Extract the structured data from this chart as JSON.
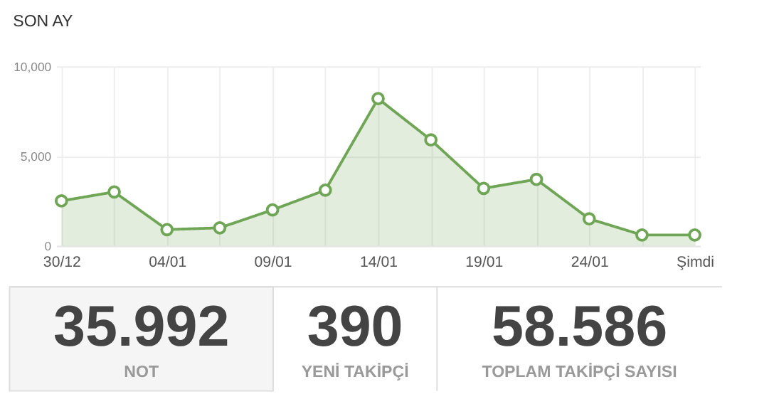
{
  "chart_data": [
    {
      "type": "area",
      "title": "SON AY",
      "categories": [
        "30/12",
        null,
        "04/01",
        null,
        "09/01",
        null,
        "14/01",
        null,
        "19/01",
        null,
        "24/01",
        null,
        "Şimdi"
      ],
      "series": [
        {
          "color": "#6fa656",
          "values": [
            2500,
            3000,
            900,
            1000,
            2000,
            3100,
            8200,
            5900,
            3200,
            3700,
            1500,
            600,
            600
          ]
        }
      ],
      "ylim": [
        0,
        10000
      ],
      "yticks": [
        0,
        {
          "value": 5000,
          "label": "5,000"
        },
        {
          "value": 10000,
          "label": "10,000"
        }
      ],
      "grid": true,
      "marker": "circle",
      "line_style": "solid"
    },
    {
      "type": "other",
      "annotations": [
        "35.992",
        "NOT",
        "390",
        "YENİ TAKİPÇİ",
        "58.586",
        "TOPLAM TAKİPÇİ SAYISI"
      ]
    }
  ]
}
